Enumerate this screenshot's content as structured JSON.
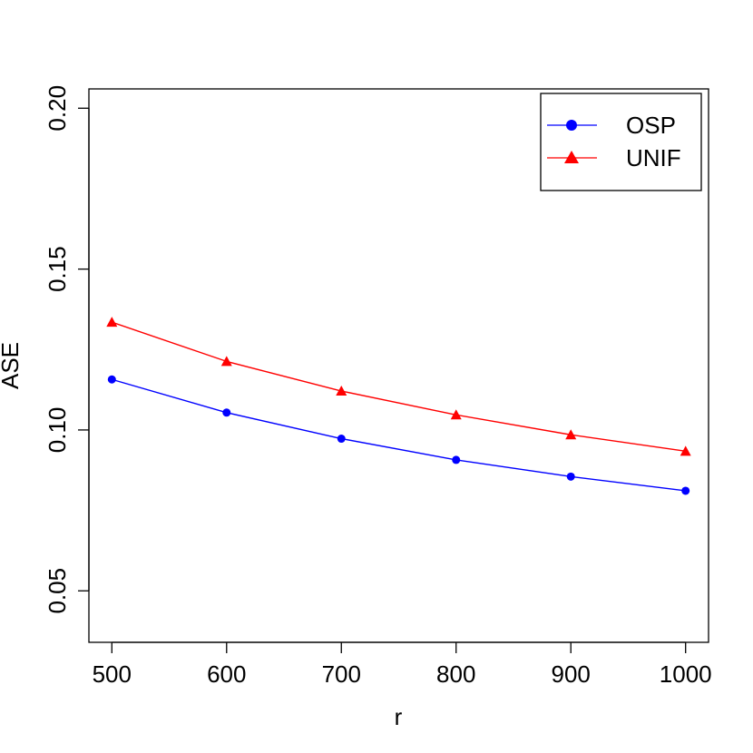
{
  "chart_data": {
    "type": "line",
    "title": "",
    "xlabel": "r",
    "ylabel": "ASE",
    "x": [
      500,
      600,
      700,
      800,
      900,
      1000
    ],
    "xlim": [
      480,
      1020
    ],
    "ylim": [
      0.034,
      0.206
    ],
    "xticks": [
      "500",
      "600",
      "700",
      "800",
      "900",
      "1000"
    ],
    "yticks": [
      "0.05",
      "0.10",
      "0.15",
      "0.20"
    ],
    "grid": false,
    "legend_position": "top-right",
    "series": [
      {
        "name": "OSP",
        "values": [
          0.1157,
          0.1054,
          0.0973,
          0.0907,
          0.0855,
          0.0811
        ],
        "color": "#0000ff",
        "marker": "circle"
      },
      {
        "name": "UNIF",
        "values": [
          0.1335,
          0.1213,
          0.1121,
          0.1047,
          0.0985,
          0.0934
        ],
        "color": "#ff0000",
        "marker": "triangle"
      }
    ]
  }
}
